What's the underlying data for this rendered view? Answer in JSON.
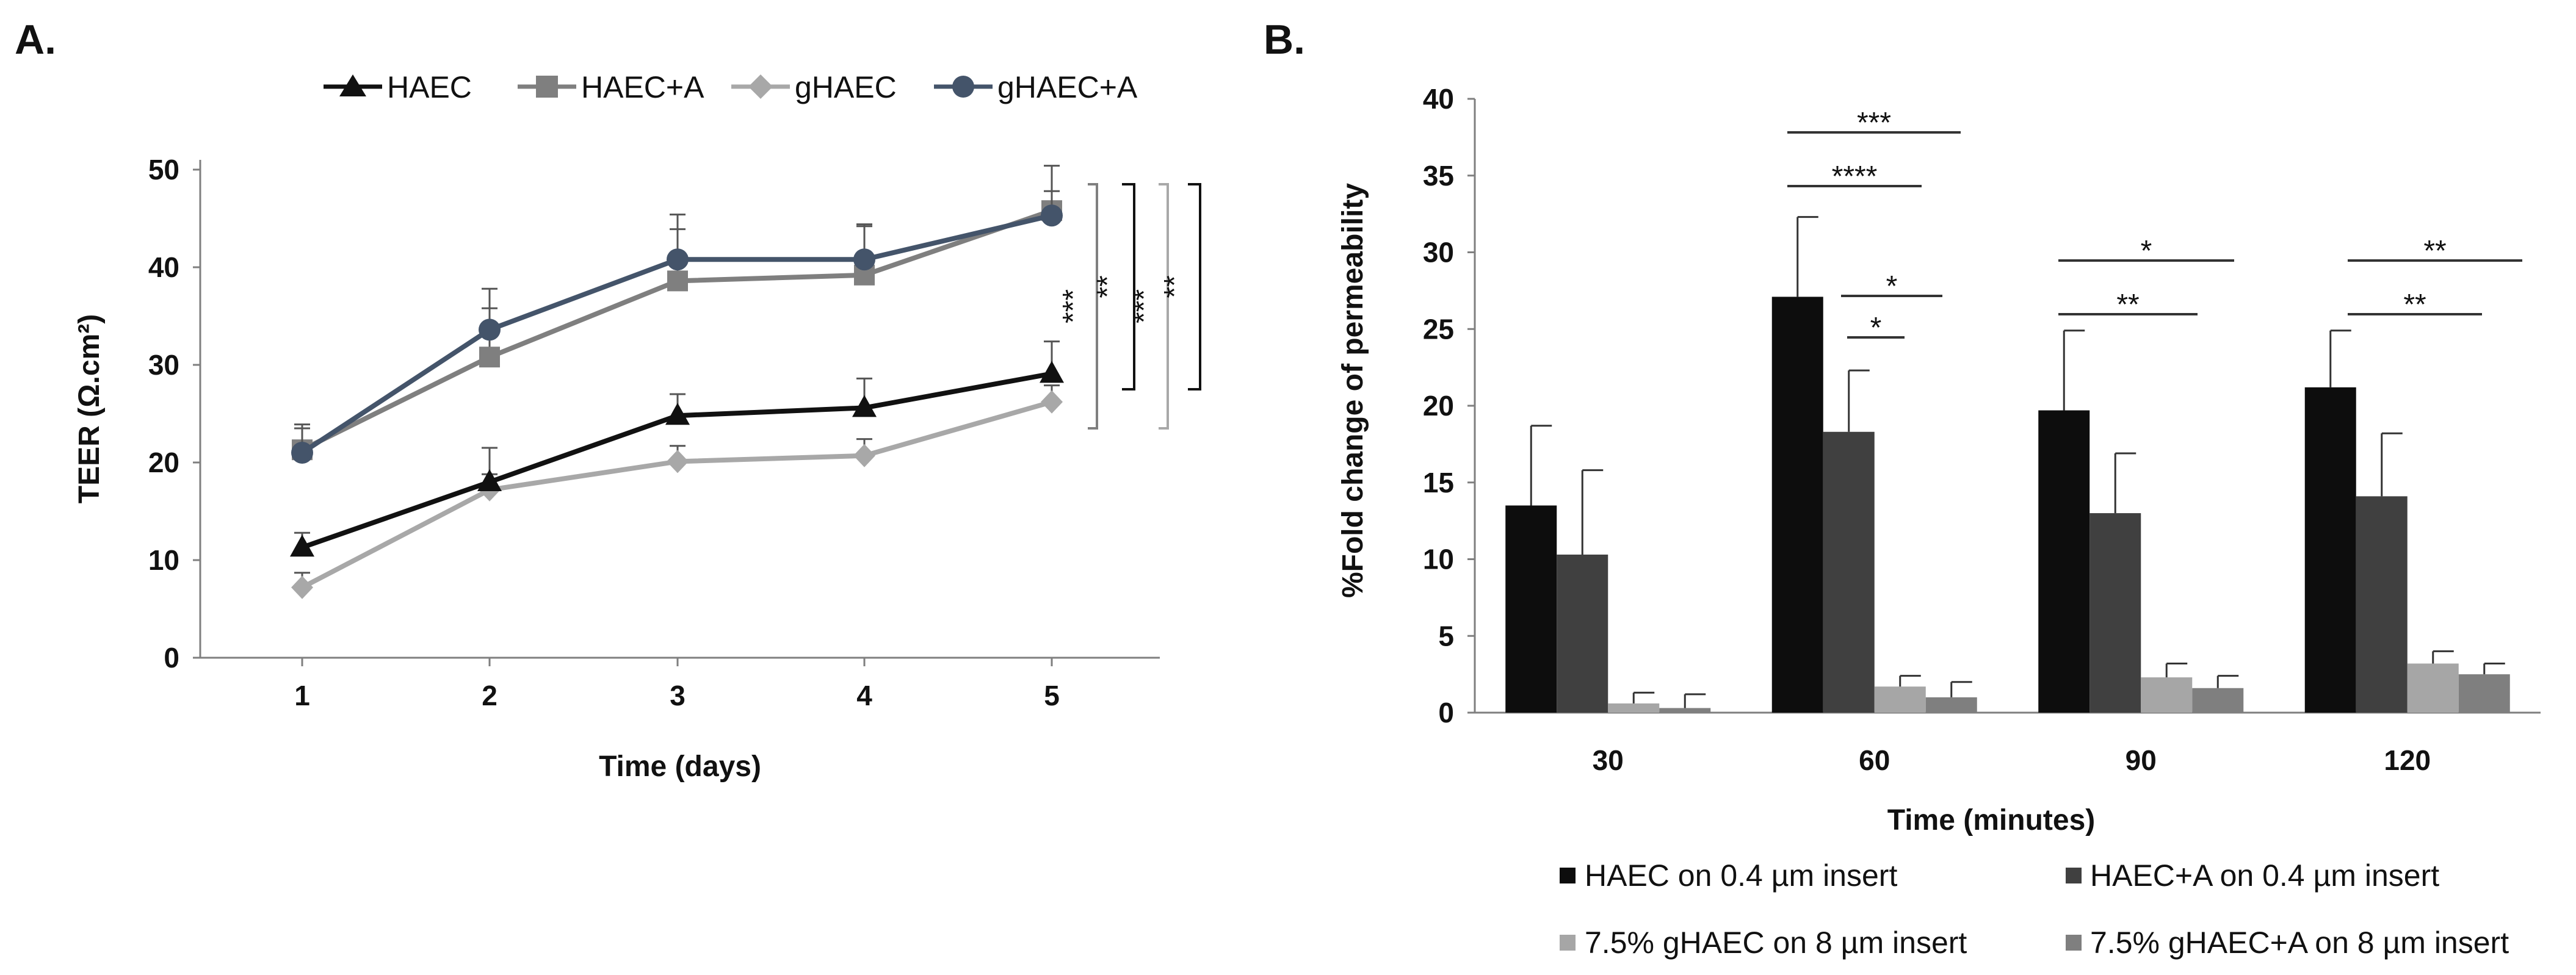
{
  "chart_data": [
    {
      "panel_label": "A.",
      "type": "line",
      "xlabel": "Time (days)",
      "ylabel": "TEER (Ω.cm²)",
      "x": [
        1,
        2,
        3,
        4,
        5
      ],
      "x_tick_labels": [
        "1",
        "2",
        "3",
        "4",
        "5"
      ],
      "ylim": [
        0,
        50
      ],
      "y_tick_labels": [
        "0",
        "10",
        "20",
        "30",
        "40",
        "50"
      ],
      "grid": false,
      "legend_position": "top",
      "series": [
        {
          "name": "HAEC",
          "marker": "triangle",
          "color": "#111111",
          "values": [
            11.3,
            18.0,
            24.8,
            25.6,
            29.1
          ],
          "errors": [
            1.5,
            3.5,
            2.2,
            3.0,
            3.3
          ]
        },
        {
          "name": "HAEC+A",
          "marker": "square",
          "color": "#7f7f7f",
          "values": [
            21.3,
            30.8,
            38.6,
            39.2,
            45.8
          ],
          "errors": [
            2.2,
            5.0,
            5.3,
            5.0,
            2.0
          ]
        },
        {
          "name": "gHAEC",
          "marker": "diamond",
          "color": "#a8a8a8",
          "values": [
            7.2,
            17.2,
            20.1,
            20.7,
            26.2
          ],
          "errors": [
            1.5,
            1.6,
            1.6,
            1.7,
            1.7
          ]
        },
        {
          "name": "gHAEC+A",
          "marker": "circle",
          "color": "#44546a",
          "values": [
            21.0,
            33.6,
            40.8,
            40.8,
            45.3
          ],
          "errors": [
            2.9,
            4.2,
            4.6,
            3.6,
            5.1
          ]
        }
      ],
      "significance": [
        "***",
        "**",
        "***",
        "**"
      ]
    },
    {
      "panel_label": "B.",
      "type": "bar",
      "xlabel": "Time (minutes)",
      "ylabel": "%Fold change of permeability",
      "categories": [
        "30",
        "60",
        "90",
        "120"
      ],
      "ylim": [
        0,
        40
      ],
      "y_tick_labels": [
        "0",
        "5",
        "10",
        "15",
        "20",
        "25",
        "30",
        "35",
        "40"
      ],
      "grid": false,
      "legend_position": "bottom",
      "series": [
        {
          "name": "HAEC on 0.4 µm insert",
          "color": "#0d0d0d",
          "values": [
            13.5,
            27.1,
            19.7,
            21.2
          ],
          "errors": [
            5.2,
            5.2,
            5.2,
            3.7
          ]
        },
        {
          "name": "HAEC+A on 0.4 µm insert",
          "color": "#404040",
          "values": [
            10.3,
            18.3,
            13.0,
            14.1
          ],
          "errors": [
            5.5,
            4.0,
            3.9,
            4.1
          ]
        },
        {
          "name": "7.5% gHAEC on 8 µm insert",
          "color": "#a6a6a6",
          "values": [
            0.6,
            1.7,
            2.3,
            3.2
          ],
          "errors": [
            0.7,
            0.7,
            0.9,
            0.8
          ]
        },
        {
          "name": "7.5% gHAEC+A on 8 µm insert",
          "color": "#7f7f7f",
          "values": [
            0.3,
            1.0,
            1.6,
            2.5
          ],
          "errors": [
            0.9,
            1.0,
            0.8,
            0.7
          ]
        }
      ],
      "significance": [
        "***",
        "****",
        "*",
        "*",
        "*",
        "**",
        "**",
        "**"
      ]
    }
  ]
}
